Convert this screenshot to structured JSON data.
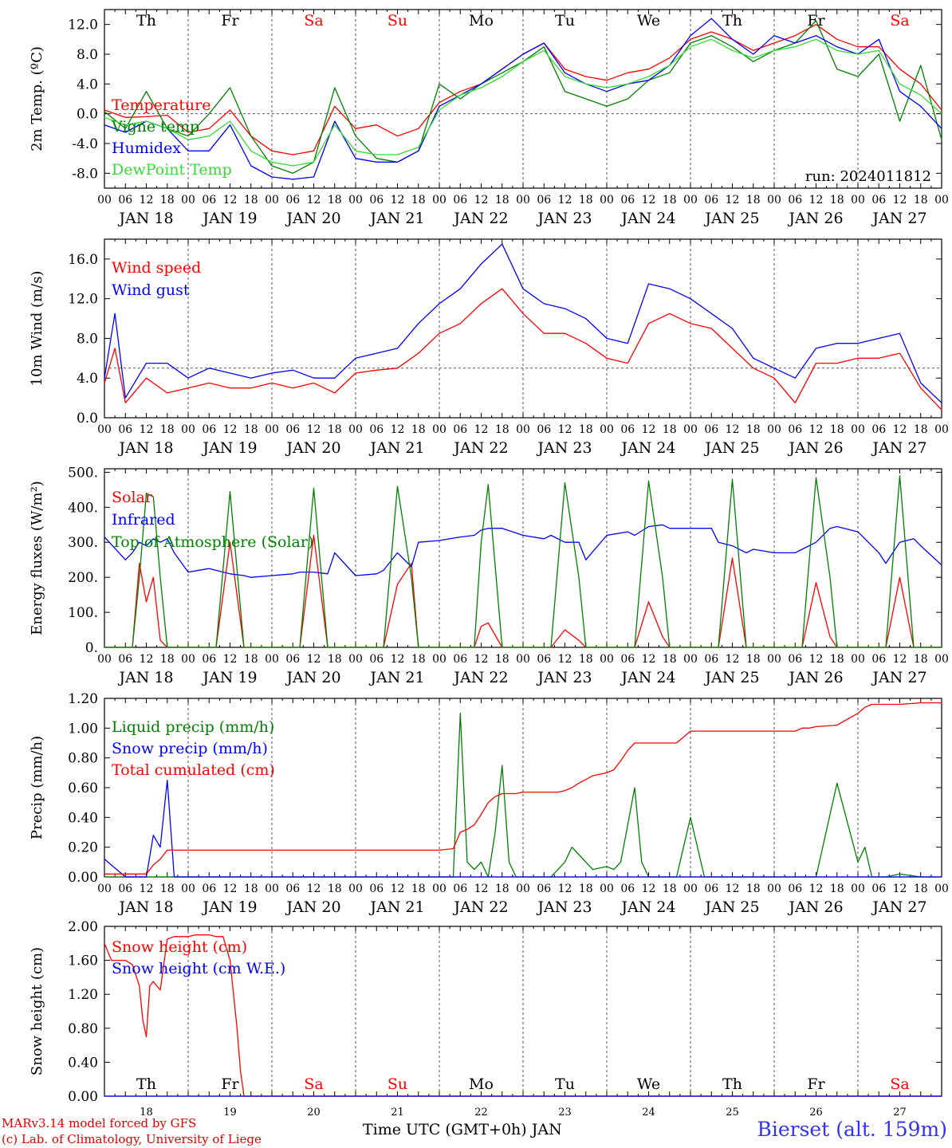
{
  "days": {
    "names": [
      "Th",
      "Fr",
      "Sa",
      "Su",
      "Mo",
      "Tu",
      "We",
      "Th",
      "Fr",
      "Sa"
    ],
    "weekend": [
      false,
      false,
      true,
      true,
      false,
      false,
      false,
      false,
      false,
      true
    ],
    "dates": [
      "JAN 18",
      "JAN 19",
      "JAN 20",
      "JAN 21",
      "JAN 22",
      "JAN 23",
      "JAN 24",
      "JAN 25",
      "JAN 26",
      "JAN 27"
    ],
    "numbers": [
      "18",
      "19",
      "20",
      "21",
      "22",
      "23",
      "24",
      "25",
      "26",
      "27"
    ]
  },
  "hour_ticks": [
    "00",
    "06",
    "12",
    "18"
  ],
  "hour_tick_end": "00",
  "run_label": "run: 2024011812",
  "footer": {
    "model": "MARv3.14 model forced by GFS",
    "lab": "(c) Lab. of Climatology, University of Liege",
    "xtitle": "Time UTC (GMT+0h) JAN",
    "station": "Bierset (alt. 159m)"
  },
  "colors": {
    "red": "#ff0000",
    "green": "#008000",
    "blue": "#0000ff",
    "lightgreen": "#33dd33",
    "grid": "#555555",
    "axis": "#000000"
  },
  "chart_data": [
    {
      "type": "line",
      "id": "temp",
      "ylabel": "2m Temp. (ºC)",
      "ylim": [
        -10,
        14
      ],
      "yticks": [
        -8,
        -4,
        0,
        4,
        8,
        12
      ],
      "ytick_labels": [
        "-8.0",
        "-4.0",
        "0.0",
        "4.0",
        "8.0",
        "12.0"
      ],
      "ref_line": 0,
      "grid": "dashed daily",
      "x_unit": "hours since JAN 18 00 UTC",
      "x": [
        0,
        6,
        12,
        18,
        24,
        30,
        36,
        42,
        48,
        54,
        60,
        66,
        72,
        78,
        84,
        90,
        96,
        102,
        108,
        114,
        120,
        126,
        132,
        138,
        144,
        150,
        156,
        162,
        168,
        174,
        180,
        186,
        192,
        198,
        204,
        210,
        216,
        222,
        228,
        234,
        240
      ],
      "series": [
        {
          "name": "Temperature",
          "color": "red",
          "values": [
            0.5,
            -0.5,
            -0.4,
            -0.2,
            -2.5,
            -2.0,
            0.5,
            -3.0,
            -5.0,
            -5.5,
            -5.0,
            1.0,
            -2.0,
            -1.5,
            -3.0,
            -2.0,
            1.5,
            3.0,
            4.0,
            6.0,
            8.0,
            9.5,
            6.0,
            5.0,
            4.5,
            5.5,
            6.0,
            7.5,
            10.0,
            11.0,
            10.0,
            8.5,
            9.5,
            10.5,
            12.0,
            10.0,
            9.0,
            9.0,
            6.0,
            4.0,
            0.5
          ]
        },
        {
          "name": "Vigne temp",
          "color": "green",
          "values": [
            0.3,
            -2.0,
            3.0,
            -2.0,
            -3.0,
            0.0,
            3.5,
            -3.0,
            -7.0,
            -8.0,
            -6.5,
            3.5,
            -3.0,
            -6.0,
            -6.5,
            -5.0,
            4.0,
            2.0,
            4.0,
            5.5,
            7.0,
            9.0,
            3.0,
            2.0,
            1.0,
            2.0,
            4.5,
            5.5,
            9.5,
            10.5,
            9.0,
            7.0,
            8.5,
            9.5,
            12.5,
            6.0,
            5.0,
            8.0,
            -1.0,
            6.5,
            -3.5
          ]
        },
        {
          "name": "Humidex",
          "color": "blue",
          "values": [
            -1.5,
            -2.5,
            -1.0,
            -2.0,
            -5.0,
            -5.0,
            -1.5,
            -7.0,
            -8.5,
            -8.8,
            -8.5,
            -1.0,
            -6.0,
            -6.5,
            -6.5,
            -5.0,
            1.0,
            2.5,
            4.0,
            6.0,
            8.0,
            9.5,
            5.5,
            4.0,
            3.0,
            4.0,
            4.5,
            6.5,
            10.5,
            12.8,
            10.0,
            8.0,
            10.5,
            9.5,
            10.5,
            9.0,
            8.0,
            10.0,
            3.0,
            1.0,
            -2.0
          ]
        },
        {
          "name": "DewPoint Temp",
          "color": "lightgreen",
          "values": [
            -0.5,
            -1.5,
            -1.0,
            -2.0,
            -3.5,
            -3.0,
            -1.0,
            -5.0,
            -6.5,
            -7.0,
            -6.5,
            -1.5,
            -5.0,
            -5.5,
            -5.5,
            -4.5,
            0.5,
            2.5,
            3.5,
            5.0,
            7.0,
            8.5,
            5.0,
            4.0,
            3.5,
            4.0,
            5.0,
            6.5,
            9.0,
            10.0,
            8.5,
            7.5,
            8.5,
            9.0,
            10.0,
            8.5,
            8.0,
            8.5,
            4.0,
            2.5,
            0.0
          ]
        }
      ]
    },
    {
      "type": "line",
      "id": "wind",
      "ylabel": "10m Wind (m/s)",
      "ylim": [
        0,
        18
      ],
      "yticks": [
        0,
        4,
        8,
        12,
        16
      ],
      "ytick_labels": [
        "0.0",
        "4.0",
        "8.0",
        "12.0",
        "16.0"
      ],
      "ref_line": 5,
      "grid": "dashed daily",
      "x_unit": "hours since JAN 18 00 UTC",
      "x": [
        0,
        3,
        6,
        12,
        18,
        24,
        30,
        36,
        42,
        48,
        54,
        60,
        66,
        72,
        78,
        84,
        90,
        96,
        102,
        108,
        114,
        120,
        126,
        132,
        138,
        144,
        150,
        156,
        162,
        168,
        174,
        180,
        186,
        192,
        198,
        204,
        210,
        216,
        222,
        228,
        234,
        240
      ],
      "series": [
        {
          "name": "Wind speed",
          "color": "red",
          "values": [
            3.5,
            7.0,
            1.5,
            4.0,
            2.5,
            3.0,
            3.5,
            3.0,
            3.0,
            3.5,
            3.0,
            3.5,
            2.5,
            4.5,
            4.8,
            5.0,
            6.5,
            8.5,
            9.5,
            11.5,
            13.0,
            10.5,
            8.5,
            8.5,
            7.5,
            6.0,
            5.5,
            9.5,
            10.5,
            9.5,
            9.0,
            7.0,
            5.0,
            4.0,
            1.5,
            5.5,
            5.5,
            6.0,
            6.0,
            6.5,
            3.0,
            0.8
          ]
        },
        {
          "name": "Wind gust",
          "color": "blue",
          "values": [
            4.0,
            10.5,
            2.0,
            5.5,
            5.5,
            4.0,
            5.0,
            4.5,
            4.0,
            4.5,
            4.8,
            4.0,
            4.0,
            6.0,
            6.5,
            7.0,
            9.5,
            11.5,
            13.0,
            15.5,
            17.5,
            13.0,
            11.5,
            11.0,
            10.0,
            8.0,
            7.5,
            13.5,
            13.0,
            12.0,
            10.5,
            9.0,
            6.0,
            5.0,
            4.0,
            7.0,
            7.5,
            7.5,
            8.0,
            8.5,
            3.5,
            1.5
          ]
        }
      ]
    },
    {
      "type": "line",
      "id": "flux",
      "ylabel": "Energy fluxes (W/m²)",
      "ylim": [
        0,
        510
      ],
      "yticks": [
        0,
        100,
        200,
        300,
        400,
        500
      ],
      "ytick_labels": [
        "0.",
        "100.",
        "200.",
        "300.",
        "400.",
        "500."
      ],
      "grid": "dashed daily",
      "x_unit": "hours since JAN 18 00 UTC",
      "x": [
        0,
        6,
        8,
        10,
        12,
        14,
        16,
        18,
        20,
        24,
        30,
        32,
        36,
        40,
        42,
        48,
        54,
        56,
        60,
        64,
        66,
        72,
        78,
        80,
        84,
        88,
        90,
        96,
        102,
        106,
        108,
        110,
        114,
        120,
        126,
        128,
        132,
        136,
        138,
        144,
        150,
        152,
        156,
        160,
        162,
        168,
        174,
        176,
        180,
        184,
        186,
        192,
        198,
        200,
        204,
        208,
        210,
        216,
        222,
        224,
        228,
        232,
        234,
        240
      ],
      "series": [
        {
          "name": "Solar",
          "color": "red",
          "values": [
            0,
            0,
            0,
            240,
            130,
            200,
            20,
            0,
            0,
            0,
            0,
            0,
            300,
            0,
            0,
            0,
            0,
            0,
            320,
            0,
            0,
            0,
            0,
            0,
            180,
            240,
            0,
            0,
            0,
            0,
            60,
            70,
            0,
            0,
            0,
            0,
            50,
            20,
            0,
            0,
            0,
            0,
            130,
            30,
            0,
            0,
            0,
            0,
            255,
            0,
            0,
            0,
            0,
            0,
            185,
            30,
            0,
            0,
            0,
            0,
            200,
            0,
            0,
            0
          ]
        },
        {
          "name": "Infrared",
          "color": "blue",
          "values": [
            315,
            250,
            270,
            300,
            290,
            310,
            300,
            310,
            270,
            215,
            225,
            220,
            210,
            205,
            200,
            205,
            210,
            215,
            215,
            210,
            270,
            205,
            210,
            220,
            270,
            230,
            300,
            305,
            315,
            320,
            335,
            340,
            340,
            320,
            310,
            320,
            300,
            300,
            250,
            320,
            330,
            320,
            345,
            350,
            340,
            340,
            340,
            300,
            290,
            270,
            280,
            270,
            270,
            280,
            300,
            340,
            345,
            330,
            270,
            240,
            300,
            310,
            290,
            235
          ]
        },
        {
          "name": "Top of Atmosphere (Solar)",
          "color": "green",
          "values": [
            0,
            0,
            0,
            200,
            440,
            430,
            200,
            0,
            0,
            0,
            0,
            0,
            445,
            0,
            0,
            0,
            0,
            0,
            455,
            0,
            0,
            0,
            0,
            0,
            460,
            200,
            0,
            0,
            0,
            0,
            300,
            465,
            0,
            0,
            0,
            0,
            470,
            200,
            0,
            0,
            0,
            0,
            475,
            200,
            0,
            0,
            0,
            0,
            480,
            0,
            0,
            0,
            0,
            0,
            485,
            200,
            0,
            0,
            0,
            0,
            490,
            0,
            0,
            0
          ]
        }
      ]
    },
    {
      "type": "line",
      "id": "precip",
      "ylabel": "Precip (mm/h)",
      "ylim": [
        0,
        1.2
      ],
      "yticks": [
        0,
        0.2,
        0.4,
        0.6,
        0.8,
        1.0,
        1.2
      ],
      "ytick_labels": [
        "0.00",
        "0.20",
        "0.40",
        "0.60",
        "0.80",
        "1.00",
        "1.20"
      ],
      "grid": "dashed daily",
      "x_unit": "hours since JAN 18 00 UTC",
      "x": [
        0,
        6,
        12,
        14,
        16,
        18,
        20,
        24,
        48,
        72,
        96,
        100,
        102,
        104,
        106,
        108,
        110,
        112,
        114,
        116,
        118,
        120,
        124,
        126,
        128,
        130,
        132,
        134,
        136,
        140,
        144,
        146,
        148,
        150,
        152,
        154,
        156,
        158,
        160,
        162,
        164,
        168,
        172,
        176,
        180,
        186,
        192,
        198,
        200,
        202,
        204,
        210,
        216,
        218,
        220,
        222,
        224,
        228,
        234,
        240
      ],
      "series": [
        {
          "name": "Liquid precip (mm/h)",
          "color": "green",
          "values": [
            0,
            0,
            0,
            0,
            0,
            0,
            0,
            0,
            0,
            0,
            0,
            0,
            1.1,
            0.1,
            0.05,
            0.1,
            0,
            0.3,
            0.75,
            0.1,
            0,
            0,
            0,
            0,
            0,
            0.05,
            0.1,
            0.2,
            0.15,
            0.05,
            0.07,
            0.05,
            0.1,
            0.35,
            0.6,
            0.1,
            0,
            0,
            0,
            0,
            0,
            0.4,
            0,
            0,
            0,
            0,
            0,
            0,
            0,
            0,
            0,
            0.63,
            0.1,
            0.2,
            0,
            0,
            0,
            0.02,
            0,
            0
          ]
        },
        {
          "name": "Snow precip (mm/h)",
          "color": "blue",
          "values": [
            0.12,
            0,
            0,
            0.28,
            0.2,
            0.65,
            0,
            0,
            0,
            0,
            0,
            0,
            0,
            0,
            0,
            0,
            0,
            0,
            0,
            0,
            0,
            0,
            0,
            0,
            0,
            0,
            0,
            0,
            0,
            0,
            0,
            0,
            0,
            0,
            0,
            0,
            0,
            0,
            0,
            0,
            0,
            0,
            0,
            0,
            0,
            0,
            0,
            0,
            0,
            0,
            0,
            0,
            0,
            0,
            0,
            0,
            0,
            0,
            0,
            0
          ]
        },
        {
          "name": "Total cumulated (cm)",
          "color": "red",
          "values": [
            0.02,
            0.02,
            0.02,
            0.08,
            0.12,
            0.18,
            0.18,
            0.18,
            0.18,
            0.18,
            0.18,
            0.19,
            0.3,
            0.32,
            0.35,
            0.42,
            0.5,
            0.54,
            0.56,
            0.56,
            0.56,
            0.57,
            0.57,
            0.57,
            0.57,
            0.57,
            0.58,
            0.6,
            0.63,
            0.68,
            0.7,
            0.72,
            0.78,
            0.85,
            0.9,
            0.9,
            0.9,
            0.9,
            0.9,
            0.9,
            0.9,
            0.98,
            0.98,
            0.98,
            0.98,
            0.98,
            0.98,
            0.98,
            1.0,
            1.0,
            1.01,
            1.02,
            1.1,
            1.14,
            1.16,
            1.16,
            1.16,
            1.16,
            1.17,
            1.17
          ]
        }
      ]
    },
    {
      "type": "line",
      "id": "snow",
      "ylabel": "Snow height (cm)",
      "ylim": [
        0,
        2.0
      ],
      "yticks": [
        0,
        0.4,
        0.8,
        1.2,
        1.6,
        2.0
      ],
      "ytick_labels": [
        "0.00",
        "0.40",
        "0.80",
        "1.20",
        "1.60",
        "2.00"
      ],
      "grid": "dashed daily",
      "x_unit": "hours since JAN 18 00 UTC",
      "x": [
        0,
        2,
        6,
        8,
        10,
        11,
        12,
        13,
        14,
        16,
        18,
        20,
        22,
        24,
        26,
        28,
        30,
        32,
        34,
        36,
        37,
        38,
        39,
        40,
        48,
        240
      ],
      "series": [
        {
          "name": "Snow height (cm)",
          "color": "red",
          "values": [
            1.8,
            1.6,
            1.6,
            1.55,
            1.3,
            0.9,
            0.7,
            1.3,
            1.35,
            1.25,
            1.85,
            1.88,
            1.88,
            1.88,
            1.9,
            1.9,
            1.9,
            1.88,
            1.88,
            1.6,
            1.2,
            0.8,
            0.3,
            0,
            0,
            0
          ]
        },
        {
          "name": "Snow height (cm W.E.)",
          "color": "blue",
          "values": [
            0,
            0,
            0,
            0,
            0,
            0,
            0,
            0,
            0,
            0,
            0,
            0,
            0,
            0,
            0,
            0,
            0,
            0,
            0,
            0,
            0,
            0,
            0,
            0,
            0,
            0
          ]
        }
      ]
    }
  ]
}
